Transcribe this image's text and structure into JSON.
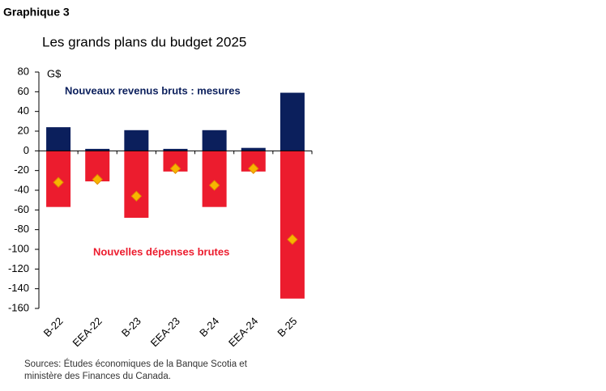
{
  "header": "Graphique 3",
  "chart_data": {
    "type": "bar",
    "title": "Les grands plans du budget 2025",
    "y_unit": "G$",
    "annotations": [
      "Nouveaux revenus bruts : mesures",
      "Nouvelles dépenses brutes"
    ],
    "categories": [
      "B-22",
      "EEA-22",
      "B-23",
      "EEA-23",
      "B-24",
      "EEA-24",
      "B-25"
    ],
    "series": [
      {
        "color": "#0b1f5c",
        "values": [
          24,
          2,
          21,
          2,
          21,
          3,
          59
        ]
      },
      {
        "color": "#ec1c2e",
        "values": [
          -57,
          -31,
          -68,
          -21,
          -57,
          -21,
          -150
        ]
      },
      {
        "type": "diamond",
        "color": "#f7b500",
        "values": [
          -32,
          -29,
          -46,
          -18,
          -35,
          -18,
          -90
        ]
      }
    ],
    "ylim": [
      -160,
      80
    ],
    "yticks": [
      -160,
      -140,
      -120,
      -100,
      -80,
      -60,
      -40,
      -20,
      0,
      20,
      40,
      60,
      80
    ]
  },
  "source": [
    "Sources: Études économiques de la Banque Scotia et",
    "ministère des Finances du Canada."
  ]
}
